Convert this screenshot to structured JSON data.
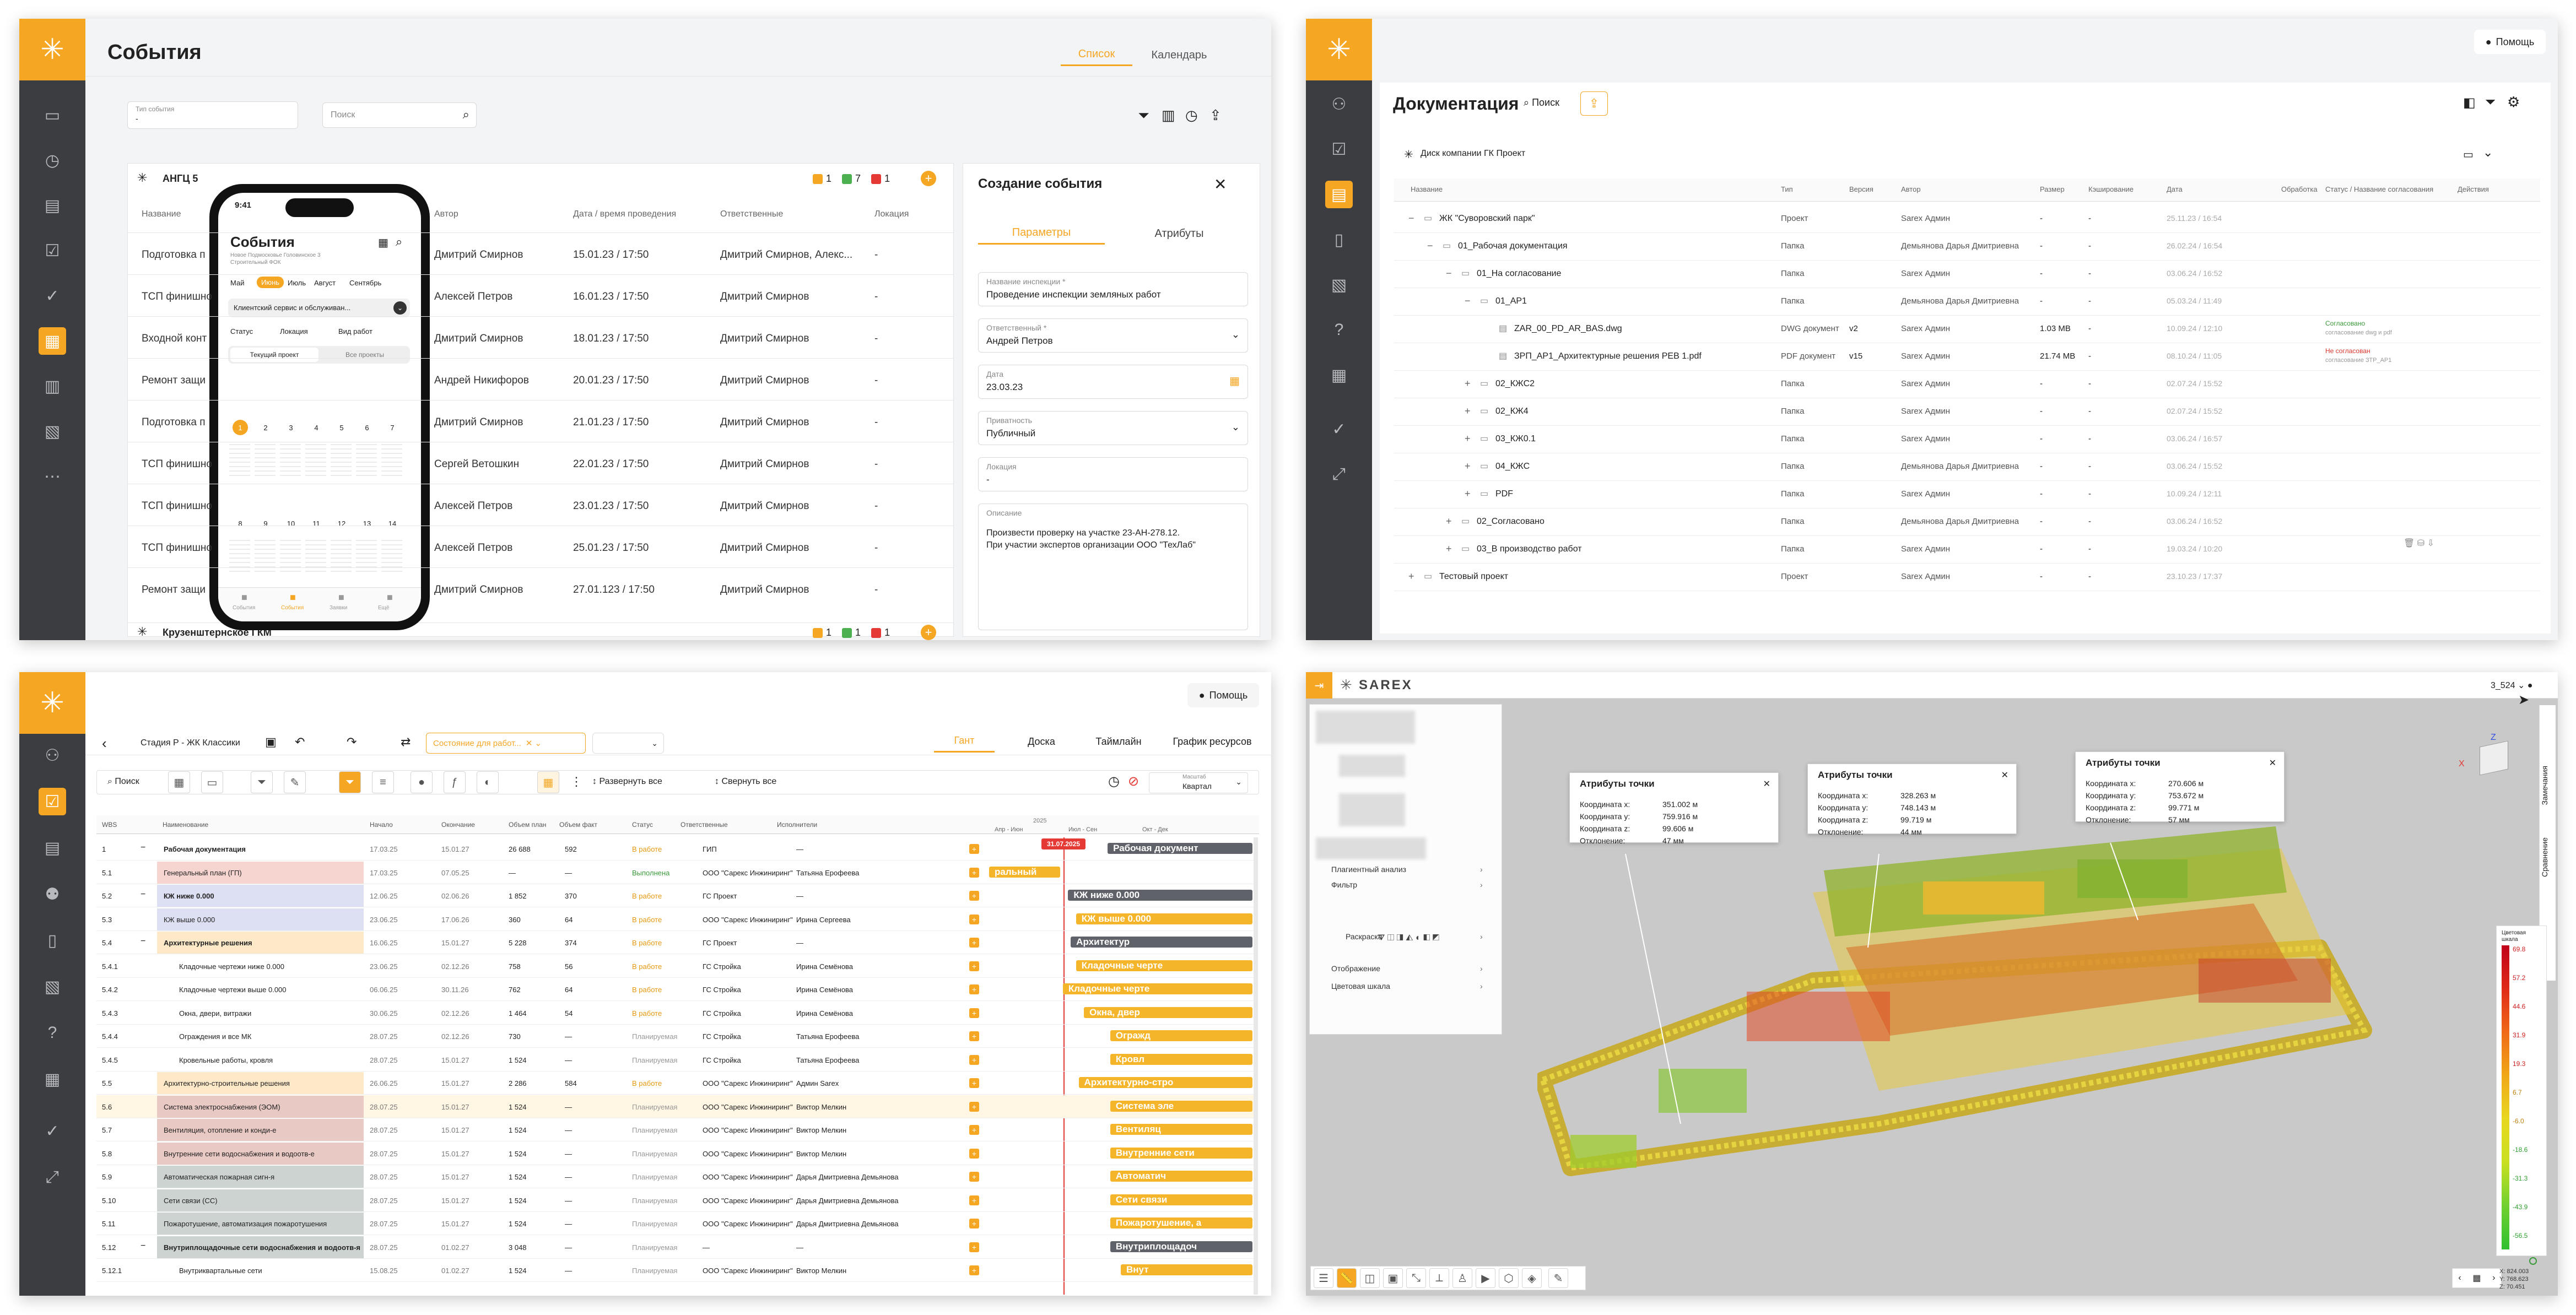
{
  "events": {
    "title": "События",
    "tabs": [
      "Список",
      "Календарь"
    ],
    "filter": {
      "label": "Тип события",
      "value": "-"
    },
    "search_placeholder": "Поиск",
    "group1": {
      "name": "АНГЦ 5",
      "counts": [
        "1",
        "7",
        "1"
      ]
    },
    "group2": {
      "name": "Крузенштернское ГКМ",
      "counts": [
        "1",
        "1",
        "1"
      ]
    },
    "columns": [
      "Название",
      "Автор",
      "Дата / время проведения",
      "Ответственные",
      "Локация"
    ],
    "rows": [
      {
        "name": "Подготовка п",
        "author": "Дмитрий Смирнов",
        "date": "15.01.23 / 17:50",
        "resp": "Дмитрий Смирнов, Алекс...",
        "loc": "-"
      },
      {
        "name": "ТСП финишно",
        "author": "Алексей Петров",
        "date": "16.01.23 / 17:50",
        "resp": "Дмитрий Смирнов",
        "loc": "-"
      },
      {
        "name": "Входной конт",
        "author": "Дмитрий Смирнов",
        "date": "18.01.23 / 17:50",
        "resp": "Дмитрий Смирнов",
        "loc": "-"
      },
      {
        "name": "Ремонт защи",
        "author": "Андрей Никифоров",
        "date": "20.01.23 / 17:50",
        "resp": "Дмитрий Смирнов",
        "loc": "-"
      },
      {
        "name": "Подготовка п",
        "author": "Дмитрий Смирнов",
        "date": "21.01.23 / 17:50",
        "resp": "Дмитрий Смирнов",
        "loc": "-"
      },
      {
        "name": "ТСП финишно",
        "author": "Сергей Ветошкин",
        "date": "22.01.23 / 17:50",
        "resp": "Дмитрий Смирнов",
        "loc": "-"
      },
      {
        "name": "ТСП финишно",
        "author": "Алексей Петров",
        "date": "23.01.23 / 17:50",
        "resp": "Дмитрий Смирнов",
        "loc": "-"
      },
      {
        "name": "ТСП финишно",
        "author": "Алексей Петров",
        "date": "25.01.23 / 17:50",
        "resp": "Дмитрий Смирнов",
        "loc": "-"
      },
      {
        "name": "Ремонт защи",
        "author": "Дмитрий Смирнов",
        "date": "27.01.123 / 17:50",
        "resp": "Дмитрий Смирнов",
        "loc": "-"
      }
    ],
    "create": {
      "title": "Создание события",
      "tabs": [
        "Параметры",
        "Атрибуты"
      ],
      "f1_label": "Название инспекции *",
      "f1_value": "Проведение инспекции земляных работ",
      "f2_label": "Ответственный *",
      "f2_value": "Андрей Петров",
      "f3_label": "Дата",
      "f3_value": "23.03.23",
      "f4_label": "Приватность",
      "f4_value": "Публичный",
      "f5_label": "Локация",
      "f5_value": "-",
      "f6_label": "Описание",
      "f6_line1": "Произвести проверку на участке 23-АН-278.12.",
      "f6_line2": "При участии экспертов организации ООО \"ТехЛаб\""
    },
    "phone": {
      "time": "9:41",
      "title": "События",
      "subtitle_line1": "Новое Подмосковье Головинское 3",
      "subtitle_line2": "Строительный ФОК",
      "months": [
        "Май",
        "Июнь",
        "Июль",
        "Август",
        "Сентябрь"
      ],
      "org": "Клиентский сервис и обслуживан...",
      "filters": [
        "Статус",
        "Локация",
        "Вид работ"
      ],
      "seg": [
        "Текущий проект",
        "Все проекты"
      ],
      "week1": [
        "1",
        "2",
        "3",
        "4",
        "5",
        "6",
        "7"
      ],
      "week2": [
        "8",
        "9",
        "10",
        "11",
        "12",
        "13",
        "14"
      ],
      "nav": [
        "События",
        "События",
        "Заявки",
        "Ещё"
      ]
    }
  },
  "docs": {
    "help": "Помощь",
    "title": "Документация",
    "search": "Поиск",
    "root": "Диск компании ГК Проект",
    "columns": [
      "Название",
      "Тип",
      "Версия",
      "Автор",
      "Размер",
      "Кэширование",
      "Дата",
      "Обработка",
      "Статус / Название согласования",
      "Действия"
    ],
    "rows": [
      {
        "name": "ЖК \"Суворовский парк\"",
        "type": "Проект",
        "ver": "",
        "author": "Sarex Админ",
        "size": "-",
        "cache": "-",
        "date": "25.11.23 / 16:54",
        "status": "",
        "sign": "−",
        "indent": 0
      },
      {
        "name": "01_Рабочая документация",
        "type": "Папка",
        "ver": "",
        "author": "Демьянова Дарья Дмитриевна",
        "size": "-",
        "cache": "-",
        "date": "26.02.24 / 16:54",
        "status": "",
        "sign": "−",
        "indent": 1
      },
      {
        "name": "01_На согласование",
        "type": "Папка",
        "ver": "",
        "author": "Sarex Админ",
        "size": "-",
        "cache": "-",
        "date": "03.06.24 / 16:52",
        "status": "",
        "sign": "−",
        "indent": 2
      },
      {
        "name": "01_АР1",
        "type": "Папка",
        "ver": "",
        "author": "Демьянова Дарья Дмитриевна",
        "size": "-",
        "cache": "-",
        "date": "05.03.24 / 11:49",
        "status": "",
        "sign": "−",
        "indent": 3
      },
      {
        "name": "ZAR_00_PD_AR_BAS.dwg",
        "type": "DWG документ",
        "ver": "v2",
        "author": "Sarex Админ",
        "size": "1.03 MB",
        "cache": "-",
        "date": "10.09.24 / 12:10",
        "status": "Согласовано",
        "status2": "согласование dwg и pdf",
        "stc": "#3a9a3a",
        "sign": "",
        "indent": 4
      },
      {
        "name": "ЗРП_АР1_Архитектурные решения РЕВ 1.pdf",
        "type": "PDF документ",
        "ver": "v15",
        "author": "Sarex Админ",
        "size": "21.74 MB",
        "cache": "-",
        "date": "08.10.24 / 11:05",
        "status": "Не согласован",
        "status2": "согласование ЗТР_АР1",
        "stc": "#d9342b",
        "sign": "",
        "indent": 4
      },
      {
        "name": "02_КЖС2",
        "type": "Папка",
        "ver": "",
        "author": "Sarex Админ",
        "size": "-",
        "cache": "-",
        "date": "02.07.24 / 15:52",
        "status": "",
        "sign": "+",
        "indent": 3
      },
      {
        "name": "02_КЖ4",
        "type": "Папка",
        "ver": "",
        "author": "Sarex Админ",
        "size": "-",
        "cache": "-",
        "date": "02.07.24 / 15:52",
        "status": "",
        "sign": "+",
        "indent": 3
      },
      {
        "name": "03_КЖ0.1",
        "type": "Папка",
        "ver": "",
        "author": "Sarex Админ",
        "size": "-",
        "cache": "-",
        "date": "03.06.24 / 16:57",
        "status": "",
        "sign": "+",
        "indent": 3
      },
      {
        "name": "04_КЖС",
        "type": "Папка",
        "ver": "",
        "author": "Демьянова Дарья Дмитриевна",
        "size": "-",
        "cache": "-",
        "date": "03.06.24 / 15:52",
        "status": "",
        "sign": "+",
        "indent": 3
      },
      {
        "name": "PDF",
        "type": "Папка",
        "ver": "",
        "author": "Sarex Админ",
        "size": "-",
        "cache": "-",
        "date": "10.09.24 / 12:11",
        "status": "",
        "sign": "+",
        "indent": 3
      },
      {
        "name": "02_Согласовано",
        "type": "Папка",
        "ver": "",
        "author": "Демьянова Дарья Дмитриевна",
        "size": "-",
        "cache": "-",
        "date": "03.06.24 / 16:52",
        "status": "",
        "sign": "+",
        "indent": 2
      },
      {
        "name": "03_В производство работ",
        "type": "Папка",
        "ver": "",
        "author": "Sarex Админ",
        "size": "-",
        "cache": "-",
        "date": "19.03.24 / 10:20",
        "status": "",
        "sign": "+",
        "indent": 2
      },
      {
        "name": "Тестовый проект",
        "type": "Проект",
        "ver": "",
        "author": "Sarex Админ",
        "size": "-",
        "cache": "-",
        "date": "23.10.23 / 17:37",
        "status": "",
        "sign": "+",
        "indent": 0
      }
    ]
  },
  "gantt": {
    "help": "Помощь",
    "breadcrumb": "Стадия Р - ЖК Классики",
    "status_chip": "Состояние для работ...",
    "tabs": [
      "Гант",
      "Доска",
      "Таймлайн",
      "График ресурсов"
    ],
    "search": "Поиск",
    "expand": "Развернуть все",
    "collapse": "Свернуть все",
    "period_label": "Масштаб",
    "period_value": "Квартал",
    "today": "31.07.2025",
    "timeline_year": "2025",
    "timeline_months": [
      "Апр - Июн",
      "Июл - Сен",
      "Окт - Дек"
    ],
    "columns": [
      "WBS",
      "Наименование",
      "Начало",
      "Окончание",
      "Объем план",
      "Объем факт",
      "Статус",
      "Ответственные",
      "Исполнители"
    ],
    "rows": [
      {
        "wbs": "1",
        "name": "Рабочая документация",
        "s": "17.03.25",
        "e": "15.01.27",
        "p": "26 688",
        "f": "592",
        "st": "В работе",
        "resp": "ГИП",
        "ex": "—",
        "bold": true,
        "bg": "",
        "bar": [
          0.45,
          1.0
        ],
        "dark": true,
        "bl": "Рабочая документ"
      },
      {
        "wbs": "5.1",
        "name": "Генеральный план (ГП)",
        "s": "17.03.25",
        "e": "07.05.25",
        "p": "—",
        "f": "—",
        "st": "Выполнена",
        "resp": "ООО \"Сарекс Инжиниринг\"",
        "ex": "Татьяна Ерофеева",
        "bg": "#f6d4cf",
        "bar": [
          0,
          0.27
        ],
        "dark": false,
        "bl": "ральный"
      },
      {
        "wbs": "5.2",
        "name": "КЖ ниже 0.000",
        "s": "12.06.25",
        "e": "02.06.26",
        "p": "1 852",
        "f": "370",
        "st": "В работе",
        "resp": "ГС Проект",
        "ex": "—",
        "bold": true,
        "bg": "#dddff2",
        "bar": [
          0.3,
          1.0
        ],
        "dark": true,
        "bl": "КЖ ниже 0.000"
      },
      {
        "wbs": "5.3",
        "name": "КЖ выше 0.000",
        "s": "23.06.25",
        "e": "17.06.26",
        "p": "360",
        "f": "64",
        "st": "В работе",
        "resp": "ООО \"Сарекс Инжиниринг\"",
        "ex": "Ирина Сергеева",
        "bg": "#dddff2",
        "bar": [
          0.33,
          1.0
        ],
        "dark": false,
        "bl": "КЖ выше 0.000"
      },
      {
        "wbs": "5.4",
        "name": "Архитектурные решения",
        "s": "16.06.25",
        "e": "15.01.27",
        "p": "5 228",
        "f": "374",
        "st": "В работе",
        "resp": "ГС Проект",
        "ex": "—",
        "bold": true,
        "bg": "#fde9c8",
        "bar": [
          0.31,
          1.0
        ],
        "dark": true,
        "bl": "Архитектур"
      },
      {
        "wbs": "5.4.1",
        "name": "Кладочные чертежи ниже 0.000",
        "s": "23.06.25",
        "e": "02.12.26",
        "p": "758",
        "f": "56",
        "st": "В работе",
        "resp": "ГС Стройка",
        "ex": "Ирина Семёнова",
        "bg": "",
        "bar": [
          0.33,
          1.0
        ],
        "dark": false,
        "bl": "Кладочные черте"
      },
      {
        "wbs": "5.4.2",
        "name": "Кладочные чертежи выше 0.000",
        "s": "06.06.25",
        "e": "30.11.26",
        "p": "762",
        "f": "64",
        "st": "В работе",
        "resp": "ГС Стройка",
        "ex": "Ирина Семёнова",
        "bg": "",
        "bar": [
          0.28,
          1.0
        ],
        "dark": false,
        "bl": "Кладочные черте"
      },
      {
        "wbs": "5.4.3",
        "name": "Окна, двери, витражи",
        "s": "30.06.25",
        "e": "02.12.26",
        "p": "1 464",
        "f": "54",
        "st": "В работе",
        "resp": "ГС Стройка",
        "ex": "Ирина Семёнова",
        "bg": "",
        "bar": [
          0.36,
          1.0
        ],
        "dark": false,
        "bl": "Окна, двер"
      },
      {
        "wbs": "5.4.4",
        "name": "Ограждения и все МК",
        "s": "28.07.25",
        "e": "02.12.26",
        "p": "730",
        "f": "—",
        "st": "Планируемая",
        "resp": "ГС Стройка",
        "ex": "Татьяна Ерофеева",
        "bg": "",
        "bar": [
          0.46,
          1.0
        ],
        "dark": false,
        "bl": "Огражд"
      },
      {
        "wbs": "5.4.5",
        "name": "Кровельные работы, кровля",
        "s": "28.07.25",
        "e": "15.01.27",
        "p": "1 524",
        "f": "—",
        "st": "Планируемая",
        "resp": "ГС Стройка",
        "ex": "Татьяна Ерофеева",
        "bg": "",
        "bar": [
          0.46,
          1.0
        ],
        "dark": false,
        "bl": "Кровл"
      },
      {
        "wbs": "5.5",
        "name": "Архитектурно-строительные решения",
        "s": "26.06.25",
        "e": "15.01.27",
        "p": "2 286",
        "f": "584",
        "st": "В работе",
        "resp": "ООО \"Сарекс Инжиниринг\"",
        "ex": "Админ Sarex",
        "bg": "#fde9c8",
        "bar": [
          0.34,
          1.0
        ],
        "dark": false,
        "bl": "Архитектурно-стро"
      },
      {
        "wbs": "5.6",
        "name": "Система электроснабжения (ЭОМ)",
        "s": "28.07.25",
        "e": "15.01.27",
        "p": "1 524",
        "f": "—",
        "st": "Планируемая",
        "resp": "ООО \"Сарекс Инжиниринг\"",
        "ex": "Виктор Мелкин",
        "bg": "#e9c9c4",
        "bar": [
          0.46,
          1.0
        ],
        "dark": false,
        "bl": "Система эле"
      },
      {
        "wbs": "5.7",
        "name": "Вентиляция, отопление и конди-е",
        "s": "28.07.25",
        "e": "15.01.27",
        "p": "1 524",
        "f": "—",
        "st": "Планируемая",
        "resp": "ООО \"Сарекс Инжиниринг\"",
        "ex": "Виктор Мелкин",
        "bg": "#e9c9c4",
        "bar": [
          0.46,
          1.0
        ],
        "dark": false,
        "bl": "Вентиляц"
      },
      {
        "wbs": "5.8",
        "name": "Внутренние сети водоснабжения и водоотв-е",
        "s": "28.07.25",
        "e": "15.01.27",
        "p": "1 524",
        "f": "—",
        "st": "Планируемая",
        "resp": "ООО \"Сарекс Инжиниринг\"",
        "ex": "Виктор Мелкин",
        "bg": "#e9c9c4",
        "bar": [
          0.46,
          1.0
        ],
        "dark": false,
        "bl": "Внутренние сети"
      },
      {
        "wbs": "5.9",
        "name": "Автоматическая пожарная сигн-я",
        "s": "28.07.25",
        "e": "15.01.27",
        "p": "1 524",
        "f": "—",
        "st": "Планируемая",
        "resp": "ООО \"Сарекс Инжиниринг\"",
        "ex": "Дарья Дмитриевна Демьянова",
        "bg": "#cdd3d0",
        "bar": [
          0.46,
          1.0
        ],
        "dark": false,
        "bl": "Автоматич"
      },
      {
        "wbs": "5.10",
        "name": "Сети связи (СС)",
        "s": "28.07.25",
        "e": "15.01.27",
        "p": "1 524",
        "f": "—",
        "st": "Планируемая",
        "resp": "ООО \"Сарекс Инжиниринг\"",
        "ex": "Дарья Дмитриевна Демьянова",
        "bg": "#cdd3d0",
        "bar": [
          0.46,
          1.0
        ],
        "dark": false,
        "bl": "Сети связи"
      },
      {
        "wbs": "5.11",
        "name": "Пожаротушение, автоматизация пожаротушения",
        "s": "28.07.25",
        "e": "15.01.27",
        "p": "1 524",
        "f": "—",
        "st": "Планируемая",
        "resp": "ООО \"Сарекс Инжиниринг\"",
        "ex": "Дарья Дмитриевна Демьянова",
        "bg": "#cdd3d0",
        "bar": [
          0.46,
          1.0
        ],
        "dark": false,
        "bl": "Пожаротушение, а"
      },
      {
        "wbs": "5.12",
        "name": "Внутриплощадочные сети водоснабжения и водоотв-я",
        "s": "28.07.25",
        "e": "01.02.27",
        "p": "3 048",
        "f": "—",
        "st": "Планируемая",
        "resp": "—",
        "ex": "—",
        "bold": true,
        "bg": "#cdd3d0",
        "bar": [
          0.46,
          1.0
        ],
        "dark": true,
        "bl": "Внутриплощадоч"
      },
      {
        "wbs": "5.12.1",
        "name": "Внутриквартальные сети",
        "s": "15.08.25",
        "e": "01.02.27",
        "p": "1 524",
        "f": "—",
        "st": "Планируемая",
        "resp": "ООО \"Сарекс Инжиниринг\"",
        "ex": "Виктор Мелкин",
        "bg": "",
        "bar": [
          0.5,
          1.0
        ],
        "dark": false,
        "bl": "Внут"
      }
    ]
  },
  "viewer": {
    "brand": "SAREX",
    "scan_id": "3_524",
    "side_menu": [
      "Плагиентный анализ",
      "Фильтр",
      "Раскраска",
      "Отображение",
      "Цветовая шкала"
    ],
    "popup1": {
      "title": "Атрибуты точки",
      "rows": [
        [
          "Координата x:",
          "351.002 м"
        ],
        [
          "Координата y:",
          "759.916 м"
        ],
        [
          "Координата z:",
          "99.606 м"
        ],
        [
          "Отклонение:",
          "47 мм"
        ]
      ]
    },
    "popup2": {
      "title": "Атрибуты точки",
      "rows": [
        [
          "Координата x:",
          "328.263 м"
        ],
        [
          "Координата y:",
          "748.143 м"
        ],
        [
          "Координата z:",
          "99.719 м"
        ],
        [
          "Отклонение:",
          "44 мм"
        ]
      ]
    },
    "popup3": {
      "title": "Атрибуты точки",
      "rows": [
        [
          "Координата x:",
          "270.606 м"
        ],
        [
          "Координата y:",
          "753.672 м"
        ],
        [
          "Координата z:",
          "99.771 м"
        ],
        [
          "Отклонение:",
          "57 мм"
        ]
      ]
    },
    "right_tabs": [
      "Замечания",
      "Сравнение"
    ],
    "scale_title": "Цветовая шкала",
    "scale_values": [
      "69.8",
      "57.2",
      "44.6",
      "31.9",
      "19.3",
      "6.7",
      "-6.0",
      "-18.6",
      "-31.3",
      "-43.9",
      "-56.5"
    ],
    "coords": [
      "X: 824.003",
      "Y: 768.623",
      "Z: 70.451"
    ],
    "axes": [
      "X",
      "Z"
    ]
  }
}
